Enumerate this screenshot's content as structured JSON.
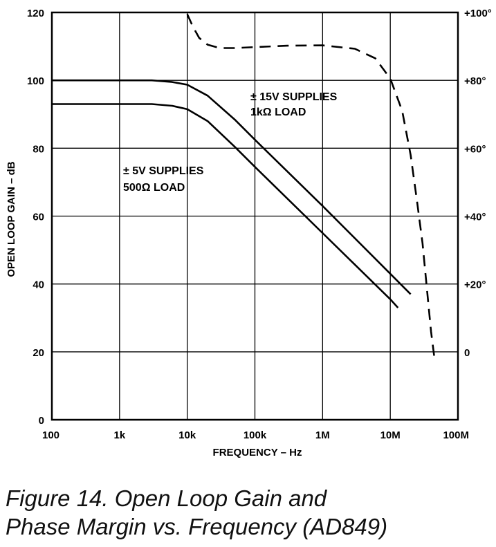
{
  "caption": {
    "line1": "Figure 14. Open Loop Gain and",
    "line2": "Phase Margin vs. Frequency (AD849)"
  },
  "chart_data": {
    "type": "line",
    "xlabel": "FREQUENCY – Hz",
    "ylabel": "OPEN LOOP GAIN – dB",
    "x_scale": "log",
    "xlim": [
      100,
      100000000
    ],
    "ylim": [
      0,
      120
    ],
    "y2lim": [
      -20,
      100
    ],
    "x_ticks": [
      {
        "value": 100,
        "label": "100"
      },
      {
        "value": 1000,
        "label": "1k"
      },
      {
        "value": 10000,
        "label": "10k"
      },
      {
        "value": 100000,
        "label": "100k"
      },
      {
        "value": 1000000,
        "label": "1M"
      },
      {
        "value": 10000000,
        "label": "10M"
      },
      {
        "value": 100000000,
        "label": "100M"
      }
    ],
    "y_ticks": [
      {
        "value": 0,
        "label": "0"
      },
      {
        "value": 20,
        "label": "20"
      },
      {
        "value": 40,
        "label": "40"
      },
      {
        "value": 60,
        "label": "60"
      },
      {
        "value": 80,
        "label": "80"
      },
      {
        "value": 100,
        "label": "100"
      },
      {
        "value": 120,
        "label": "120"
      }
    ],
    "y2_ticks": [
      {
        "value": 0,
        "label": "0"
      },
      {
        "value": 20,
        "label": "+20°"
      },
      {
        "value": 40,
        "label": "+40°"
      },
      {
        "value": 60,
        "label": "+60°"
      },
      {
        "value": 80,
        "label": "+80°"
      },
      {
        "value": 100,
        "label": "+100°"
      }
    ],
    "grid": true,
    "series": [
      {
        "name": "±15V SUPPLIES 1kΩ LOAD",
        "axis": "left",
        "style": "solid",
        "x": [
          100,
          1000,
          3000,
          6000,
          10000,
          20000,
          50000,
          100000,
          1000000,
          10000000,
          20000000
        ],
        "y": [
          100,
          100,
          100,
          99.5,
          98.7,
          95.5,
          88.5,
          82.5,
          63,
          43,
          37
        ]
      },
      {
        "name": "±5V SUPPLIES 500Ω LOAD",
        "axis": "left",
        "style": "solid",
        "x": [
          100,
          1000,
          3000,
          6000,
          10000,
          20000,
          50000,
          100000,
          1000000,
          10000000,
          13000000
        ],
        "y": [
          93,
          93,
          93,
          92.5,
          91.5,
          88,
          80.5,
          74.5,
          55,
          35.5,
          33
        ]
      },
      {
        "name": "Phase Margin",
        "axis": "right",
        "style": "dashed",
        "x": [
          10000,
          12000,
          15000,
          20000,
          30000,
          50000,
          100000,
          300000,
          1000000,
          3000000,
          6000000,
          10000000,
          15000000,
          20000000,
          25000000,
          30000000,
          35000000,
          40000000,
          45000000
        ],
        "y": [
          99.5,
          96,
          92.5,
          90.5,
          89.5,
          89.5,
          89.8,
          90.2,
          90.3,
          89.3,
          86.5,
          80.5,
          71,
          58,
          44,
          32,
          18,
          6,
          -2
        ]
      }
    ],
    "annotations": [
      {
        "lines": [
          "± 15V SUPPLIES",
          "1kΩ LOAD"
        ]
      },
      {
        "lines": [
          "± 5V SUPPLIES",
          "500Ω LOAD"
        ]
      }
    ]
  }
}
